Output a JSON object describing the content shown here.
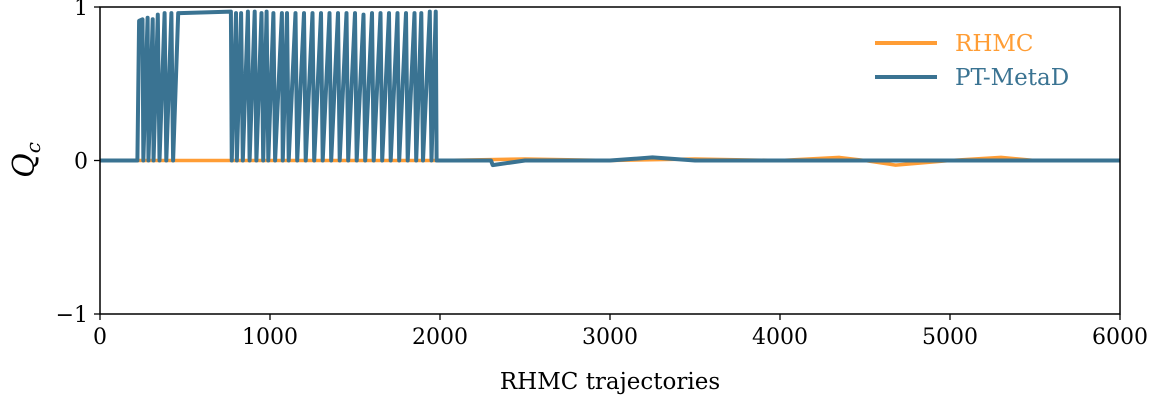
{
  "chart_data": {
    "type": "line",
    "title": "",
    "xlabel": "RHMC trajectories",
    "ylabel": {
      "main": "Q",
      "sub": "c"
    },
    "xlim": [
      0,
      6000
    ],
    "ylim": [
      -1,
      1
    ],
    "xticks": [
      0,
      1000,
      2000,
      3000,
      4000,
      5000,
      6000
    ],
    "yticks": [
      {
        "value": -1,
        "label": "−1"
      },
      {
        "value": 0,
        "label": "0"
      },
      {
        "value": 1,
        "label": "1"
      }
    ],
    "grid": false,
    "legend_position": "top-right",
    "series": [
      {
        "name": "RHMC",
        "color": "#ff9d35",
        "description": "Stays near 0 for the full run (0 to 6000) with small noise of about ±0.02.",
        "x": [
          0,
          500,
          1000,
          1500,
          2000,
          2500,
          3000,
          3500,
          4000,
          4350,
          4500,
          4680,
          5000,
          5300,
          5500,
          6000
        ],
        "y": [
          0,
          0,
          0,
          0,
          0,
          0.01,
          0,
          0.01,
          0,
          0.02,
          0,
          -0.03,
          0,
          0.02,
          0,
          0
        ]
      },
      {
        "name": "PT-MetaD",
        "color": "#3a7392",
        "description": "Tunnels rapidly between 0 and about 0.96 between x≈220 and x≈1980, then remains near 0 up to 6000.",
        "x": [
          0,
          220,
          230,
          250,
          255,
          280,
          285,
          310,
          315,
          340,
          350,
          380,
          390,
          420,
          430,
          460,
          470,
          770,
          775,
          800,
          805,
          830,
          840,
          870,
          880,
          910,
          920,
          950,
          960,
          980,
          990,
          1020,
          1030,
          1070,
          1075,
          1100,
          1110,
          1150,
          1160,
          1200,
          1210,
          1250,
          1260,
          1300,
          1310,
          1350,
          1360,
          1400,
          1410,
          1450,
          1460,
          1500,
          1510,
          1550,
          1560,
          1600,
          1610,
          1650,
          1660,
          1700,
          1710,
          1750,
          1760,
          1800,
          1810,
          1850,
          1860,
          1890,
          1900,
          1940,
          1950,
          1975,
          1980,
          2000,
          2300,
          2310,
          2500,
          3000,
          3250,
          3500,
          4000,
          4500,
          5000,
          5500,
          6000
        ],
        "y": [
          0,
          0,
          0.91,
          0.92,
          0,
          0.93,
          0,
          0.92,
          0,
          0.95,
          0,
          0.96,
          0,
          0.96,
          0,
          0.96,
          0.96,
          0.97,
          0,
          0.96,
          0,
          0.96,
          0,
          0.97,
          0,
          0.97,
          0,
          0.96,
          0,
          0.97,
          0,
          0.96,
          0,
          0.96,
          0,
          0.96,
          0,
          0.96,
          0,
          0.96,
          0,
          0.96,
          0,
          0.96,
          0,
          0.96,
          0,
          0.96,
          0,
          0.96,
          0,
          0.96,
          0,
          0.95,
          0,
          0.96,
          0,
          0.96,
          0,
          0.96,
          0,
          0.96,
          0,
          0.96,
          0,
          0.96,
          0,
          0.96,
          0,
          0.97,
          0,
          0.97,
          0,
          0,
          0,
          -0.03,
          0,
          0,
          0.02,
          0,
          0,
          0,
          0,
          0,
          0
        ]
      }
    ]
  }
}
